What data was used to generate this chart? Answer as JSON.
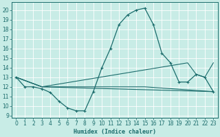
{
  "xlabel": "Humidex (Indice chaleur)",
  "xlim": [
    -0.5,
    23.5
  ],
  "ylim": [
    8.8,
    20.8
  ],
  "yticks": [
    9,
    10,
    11,
    12,
    13,
    14,
    15,
    16,
    17,
    18,
    19,
    20
  ],
  "xticks": [
    0,
    1,
    2,
    3,
    4,
    5,
    6,
    7,
    8,
    9,
    10,
    11,
    12,
    13,
    14,
    15,
    16,
    17,
    18,
    19,
    20,
    21,
    22,
    23
  ],
  "bg_color": "#c8ece6",
  "line_color": "#1a6b6b",
  "grid_color": "#ffffff",
  "line1_x": [
    0,
    1,
    2,
    3,
    4,
    5,
    6,
    7,
    8,
    9,
    10,
    11,
    12,
    13,
    14,
    15,
    16,
    17,
    18,
    19,
    20,
    21,
    22,
    23
  ],
  "line1_y": [
    13,
    12,
    12,
    11.8,
    11.4,
    10.5,
    9.8,
    9.5,
    9.5,
    11.5,
    14.0,
    16.0,
    18.5,
    19.5,
    20.0,
    20.2,
    18.5,
    15.5,
    14.5,
    12.5,
    12.5,
    13.3,
    13.0,
    11.5
  ],
  "line2_x": [
    0,
    3,
    23
  ],
  "line2_y": [
    13,
    12,
    11.5
  ],
  "line3_x": [
    0,
    3,
    15,
    23
  ],
  "line3_y": [
    13,
    12,
    12,
    11.5
  ],
  "line4_x": [
    0,
    3,
    20,
    21,
    22,
    23
  ],
  "line4_y": [
    13,
    12,
    14.5,
    13.3,
    13.0,
    14.5
  ],
  "xlabel_fontsize": 6,
  "tick_fontsize": 5.5
}
